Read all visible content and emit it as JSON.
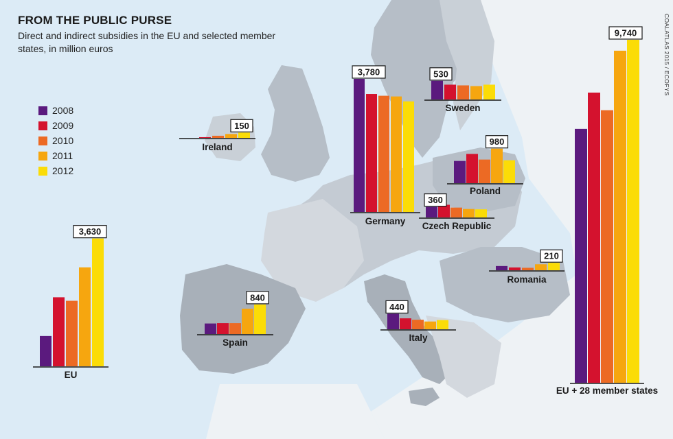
{
  "title": "FROM THE PUBLIC PURSE",
  "subtitle": "Direct and indirect subsidies in the EU and selected member states, in million euros",
  "source": "COALATLAS 2015 / ECOFYS",
  "legend": [
    {
      "label": "2008",
      "color": "#5b1a7e"
    },
    {
      "label": "2009",
      "color": "#d4122e"
    },
    {
      "label": "2010",
      "color": "#ec6a24"
    },
    {
      "label": "2011",
      "color": "#f6a60f"
    },
    {
      "label": "2012",
      "color": "#fbdc07"
    }
  ],
  "chart_data": [
    {
      "type": "bar",
      "region": "EU + 28 member states",
      "categories": [
        "2008",
        "2009",
        "2010",
        "2011",
        "2012"
      ],
      "values": [
        7210,
        8240,
        7740,
        9430,
        9740
      ],
      "data_label": "9,740"
    },
    {
      "type": "bar",
      "region": "Germany",
      "categories": [
        "2008",
        "2009",
        "2010",
        "2011",
        "2012"
      ],
      "values": [
        3780,
        3350,
        3300,
        3280,
        3140
      ],
      "data_label": "3,780"
    },
    {
      "type": "bar",
      "region": "EU",
      "categories": [
        "2008",
        "2009",
        "2010",
        "2011",
        "2012"
      ],
      "values": [
        860,
        1960,
        1860,
        2810,
        3630
      ],
      "data_label": "3,630"
    },
    {
      "type": "bar",
      "region": "Poland",
      "categories": [
        "2008",
        "2009",
        "2010",
        "2011",
        "2012"
      ],
      "values": [
        630,
        830,
        670,
        980,
        650
      ],
      "data_label": "980"
    },
    {
      "type": "bar",
      "region": "Spain",
      "categories": [
        "2008",
        "2009",
        "2010",
        "2011",
        "2012"
      ],
      "values": [
        300,
        310,
        310,
        720,
        840
      ],
      "data_label": "840"
    },
    {
      "type": "bar",
      "region": "Sweden",
      "categories": [
        "2008",
        "2009",
        "2010",
        "2011",
        "2012"
      ],
      "values": [
        530,
        420,
        400,
        380,
        420
      ],
      "data_label": "530"
    },
    {
      "type": "bar",
      "region": "Italy",
      "categories": [
        "2008",
        "2009",
        "2010",
        "2011",
        "2012"
      ],
      "values": [
        440,
        310,
        270,
        220,
        260
      ],
      "data_label": "440"
    },
    {
      "type": "bar",
      "region": "Czech Republic",
      "categories": [
        "2008",
        "2009",
        "2010",
        "2011",
        "2012"
      ],
      "values": [
        300,
        360,
        280,
        240,
        230
      ],
      "data_label": "360"
    },
    {
      "type": "bar",
      "region": "Romania",
      "categories": [
        "2008",
        "2009",
        "2010",
        "2011",
        "2012"
      ],
      "values": [
        120,
        80,
        70,
        170,
        210
      ],
      "data_label": "210"
    },
    {
      "type": "bar",
      "region": "Ireland",
      "categories": [
        "2008",
        "2009",
        "2010",
        "2011",
        "2012"
      ],
      "values": [
        0,
        20,
        60,
        110,
        150
      ],
      "data_label": "150"
    }
  ]
}
